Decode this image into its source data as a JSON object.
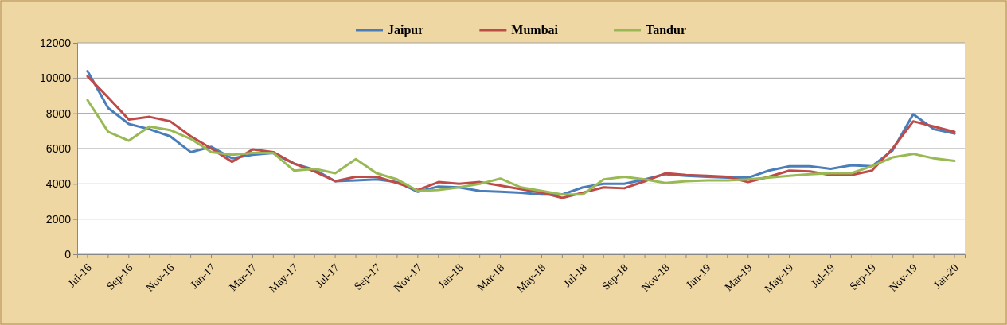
{
  "chart_data": {
    "type": "line",
    "categories": [
      "Jul-16",
      null,
      "Sep-16",
      null,
      "Nov-16",
      null,
      "Jan-17",
      null,
      "Mar-17",
      null,
      "May-17",
      null,
      "Jul-17",
      null,
      "Sep-17",
      null,
      "Nov-17",
      null,
      "Jan-18",
      null,
      "Mar-18",
      null,
      "May-18",
      null,
      "Jul-18",
      null,
      "Sep-18",
      null,
      "Nov-18",
      null,
      "Jan-19",
      null,
      "Mar-19",
      null,
      "May-19",
      null,
      "Jul-19",
      null,
      "Sep-19",
      null,
      "Nov-19",
      null,
      "Jan-20"
    ],
    "series": [
      {
        "name": "Jaipur",
        "color": "#4a7ebb",
        "values": [
          10400,
          8300,
          7400,
          7100,
          6700,
          5800,
          6100,
          5450,
          5650,
          5750,
          5150,
          4800,
          4150,
          4200,
          4250,
          4100,
          3550,
          3850,
          3800,
          3600,
          3550,
          3500,
          3400,
          3400,
          3800,
          4000,
          4000,
          4250,
          4550,
          4450,
          4400,
          4350,
          4350,
          4750,
          5000,
          5000,
          4850,
          5050,
          5000,
          5900,
          7950,
          7100,
          6850
        ]
      },
      {
        "name": "Mumbai",
        "color": "#be4b48",
        "values": [
          10100,
          8900,
          7650,
          7800,
          7550,
          6700,
          6000,
          5250,
          5950,
          5800,
          5150,
          4700,
          4150,
          4400,
          4400,
          4050,
          3650,
          4100,
          4000,
          4100,
          3900,
          3700,
          3500,
          3200,
          3500,
          3800,
          3750,
          4150,
          4600,
          4500,
          4450,
          4400,
          4100,
          4400,
          4750,
          4700,
          4500,
          4500,
          4750,
          6000,
          7550,
          7250,
          6950
        ]
      },
      {
        "name": "Tandur",
        "color": "#98b954",
        "values": [
          8750,
          6950,
          6450,
          7250,
          7050,
          6550,
          5800,
          5650,
          5750,
          5750,
          4750,
          4850,
          4600,
          5400,
          4600,
          4250,
          3600,
          3650,
          3800,
          4000,
          4300,
          3800,
          3600,
          3400,
          3400,
          4250,
          4400,
          4250,
          4050,
          4150,
          4200,
          4200,
          4250,
          4350,
          4450,
          4550,
          4600,
          4600,
          5000,
          5500,
          5700,
          5450,
          5300
        ]
      }
    ],
    "ylim": [
      0,
      12000
    ],
    "yticks": [
      0,
      2000,
      4000,
      6000,
      8000,
      10000,
      12000
    ],
    "grid": "y",
    "legend": "top",
    "marker": "none",
    "line_style": "solid"
  }
}
